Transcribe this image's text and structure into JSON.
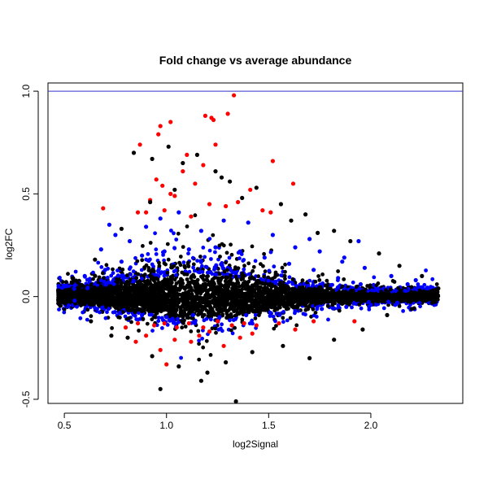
{
  "chart_data": {
    "type": "scatter",
    "title": "Fold change vs average abundance",
    "xlabel": "log2Signal",
    "ylabel": "log2FC",
    "xlim": [
      0.42,
      2.45
    ],
    "ylim": [
      -0.52,
      1.04
    ],
    "x_ticks": [
      "0.5",
      "1.0",
      "1.5",
      "2.0"
    ],
    "y_ticks": [
      "-0.5",
      "0.0",
      "0.5",
      "1.0"
    ],
    "x_tick_values": [
      0.5,
      1.0,
      1.5,
      2.0
    ],
    "y_tick_values": [
      -0.5,
      0.0,
      0.5,
      1.0
    ],
    "reference_line": {
      "y": 1.0,
      "color": "#3333cc"
    },
    "grid": false,
    "colors": {
      "not_significant": "#000000",
      "moderate": "#0000ff",
      "significant": "#ee0000"
    },
    "series": [
      {
        "color": "#ff0000",
        "points": [
          [
            1.33,
            0.98
          ],
          [
            1.3,
            0.89
          ],
          [
            1.19,
            0.88
          ],
          [
            1.22,
            0.87
          ],
          [
            1.23,
            0.86
          ],
          [
            1.02,
            0.85
          ],
          [
            0.97,
            0.83
          ],
          [
            1.24,
            0.74
          ],
          [
            0.96,
            0.79
          ],
          [
            0.87,
            0.74
          ],
          [
            1.52,
            0.66
          ],
          [
            1.1,
            0.69
          ],
          [
            1.18,
            0.64
          ],
          [
            1.08,
            0.61
          ],
          [
            0.95,
            0.57
          ],
          [
            1.14,
            0.55
          ],
          [
            0.98,
            0.54
          ],
          [
            1.62,
            0.55
          ],
          [
            1.04,
            0.49
          ],
          [
            0.92,
            0.47
          ],
          [
            1.29,
            0.44
          ],
          [
            0.99,
            0.42
          ],
          [
            1.21,
            0.45
          ],
          [
            1.41,
            0.52
          ],
          [
            0.69,
            0.43
          ],
          [
            0.9,
            0.41
          ],
          [
            1.12,
            0.39
          ],
          [
            1.47,
            0.42
          ],
          [
            1.35,
            0.46
          ],
          [
            1.51,
            0.41
          ],
          [
            0.86,
            0.41
          ],
          [
            1.02,
            0.5
          ],
          [
            0.94,
            -0.14
          ],
          [
            0.99,
            -0.13
          ],
          [
            1.05,
            -0.15
          ],
          [
            1.11,
            -0.13
          ],
          [
            1.18,
            -0.15
          ],
          [
            1.25,
            -0.12
          ],
          [
            1.32,
            -0.14
          ],
          [
            1.38,
            -0.13
          ],
          [
            0.9,
            -0.19
          ],
          [
            1.04,
            -0.21
          ],
          [
            1.21,
            -0.17
          ],
          [
            1.36,
            -0.2
          ],
          [
            0.97,
            -0.26
          ],
          [
            1.12,
            -0.22
          ],
          [
            1.44,
            -0.14
          ],
          [
            1.55,
            -0.13
          ],
          [
            1.63,
            -0.16
          ],
          [
            1.72,
            -0.12
          ],
          [
            1.92,
            -0.12
          ],
          [
            0.8,
            -0.15
          ],
          [
            0.86,
            -0.13
          ],
          [
            1.28,
            -0.24
          ],
          [
            1.16,
            -0.19
          ],
          [
            1.42,
            -0.18
          ],
          [
            1.0,
            -0.33
          ],
          [
            0.85,
            -0.22
          ]
        ]
      },
      {
        "color": "#0000ff",
        "points": [
          [
            0.68,
            0.23
          ],
          [
            0.75,
            0.3
          ],
          [
            0.82,
            0.27
          ],
          [
            0.9,
            0.34
          ],
          [
            0.97,
            0.38
          ],
          [
            1.06,
            0.41
          ],
          [
            1.17,
            0.32
          ],
          [
            1.28,
            0.37
          ],
          [
            1.4,
            0.36
          ],
          [
            1.52,
            0.3
          ],
          [
            1.63,
            0.24
          ],
          [
            1.75,
            0.22
          ],
          [
            1.87,
            0.19
          ],
          [
            1.97,
            0.14
          ],
          [
            2.1,
            0.1
          ],
          [
            2.18,
            0.06
          ],
          [
            0.6,
            0.1
          ],
          [
            0.7,
            0.13
          ],
          [
            0.78,
            0.17
          ],
          [
            0.88,
            0.2
          ],
          [
            0.99,
            0.22
          ],
          [
            1.11,
            0.23
          ],
          [
            1.24,
            0.24
          ],
          [
            1.36,
            0.22
          ],
          [
            1.48,
            0.19
          ],
          [
            1.6,
            0.16
          ],
          [
            1.72,
            0.13
          ],
          [
            1.84,
            0.09
          ],
          [
            1.95,
            0.06
          ],
          [
            0.55,
            -0.02
          ],
          [
            0.66,
            -0.06
          ],
          [
            0.77,
            -0.08
          ],
          [
            0.88,
            -0.09
          ],
          [
            1.0,
            -0.1
          ],
          [
            1.13,
            -0.09
          ],
          [
            1.26,
            -0.1
          ],
          [
            1.39,
            -0.09
          ],
          [
            1.51,
            -0.08
          ],
          [
            1.63,
            -0.07
          ],
          [
            1.76,
            -0.06
          ],
          [
            1.88,
            -0.05
          ],
          [
            2.0,
            -0.04
          ],
          [
            2.13,
            -0.03
          ],
          [
            2.22,
            0.08
          ],
          [
            0.72,
            0.35
          ],
          [
            1.86,
            0.17
          ],
          [
            1.94,
            0.27
          ],
          [
            1.7,
            0.28
          ]
        ]
      },
      {
        "color": "#000000",
        "points": [
          [
            0.97,
            -0.45
          ],
          [
            1.34,
            -0.51
          ],
          [
            1.17,
            -0.41
          ],
          [
            0.84,
            0.7
          ],
          [
            0.93,
            0.67
          ],
          [
            1.01,
            0.73
          ],
          [
            1.08,
            0.65
          ],
          [
            1.15,
            0.69
          ],
          [
            1.24,
            0.61
          ],
          [
            1.31,
            0.56
          ],
          [
            1.44,
            0.53
          ],
          [
            1.61,
            0.37
          ],
          [
            1.74,
            0.31
          ],
          [
            1.9,
            0.27
          ],
          [
            2.04,
            0.21
          ],
          [
            2.14,
            0.15
          ],
          [
            2.25,
            0.1
          ],
          [
            2.33,
            0.04
          ],
          [
            0.47,
            0.03
          ],
          [
            0.5,
            -0.03
          ],
          [
            0.58,
            0.05
          ],
          [
            0.63,
            -0.12
          ],
          [
            0.73,
            -0.19
          ],
          [
            0.81,
            -0.2
          ],
          [
            0.93,
            -0.29
          ],
          [
            1.06,
            -0.34
          ],
          [
            1.2,
            -0.37
          ],
          [
            1.29,
            -0.32
          ],
          [
            1.42,
            -0.27
          ],
          [
            1.57,
            -0.24
          ],
          [
            1.7,
            -0.3
          ],
          [
            1.82,
            -0.21
          ],
          [
            1.96,
            -0.16
          ],
          [
            2.08,
            -0.09
          ],
          [
            2.2,
            -0.06
          ],
          [
            2.3,
            -0.03
          ],
          [
            0.54,
            0.09
          ],
          [
            0.65,
            0.18
          ],
          [
            0.78,
            0.33
          ],
          [
            0.92,
            0.46
          ],
          [
            1.04,
            0.52
          ],
          [
            1.27,
            0.58
          ],
          [
            1.37,
            0.48
          ],
          [
            1.56,
            0.45
          ],
          [
            1.68,
            0.4
          ],
          [
            1.82,
            0.32
          ]
        ]
      }
    ]
  }
}
